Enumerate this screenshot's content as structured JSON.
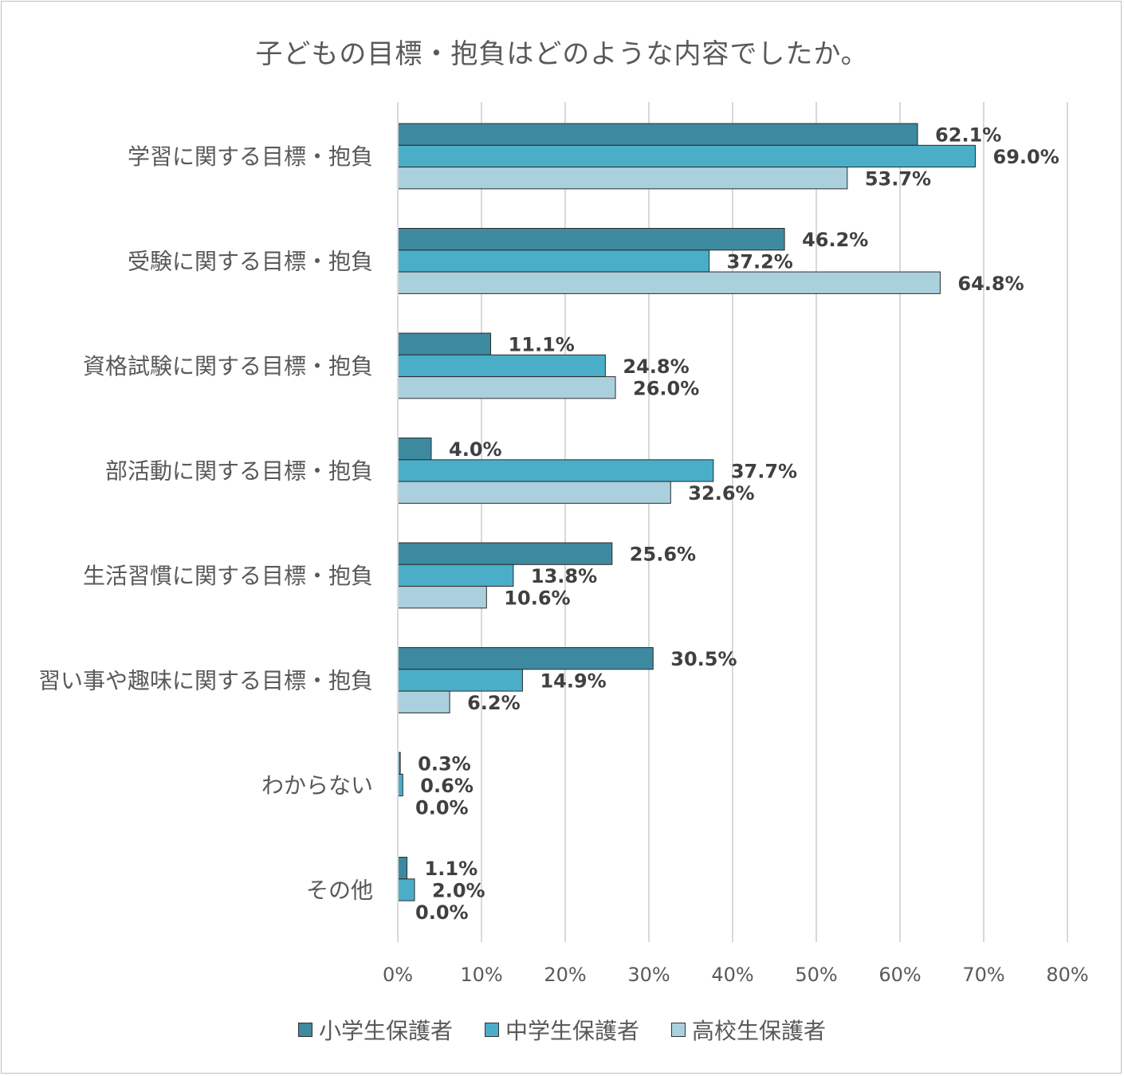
{
  "colors": {
    "series1": "#3d8aa0",
    "series2": "#4aaec9",
    "series3": "#abd0dd",
    "grid": "#d9d9d9",
    "text": "#595959"
  },
  "chart_data": {
    "type": "bar",
    "orientation": "horizontal",
    "title": "子どもの目標・抱負はどのような内容でしたか。",
    "categories": [
      "学習に関する目標・抱負",
      "受験に関する目標・抱負",
      "資格試験に関する目標・抱負",
      "部活動に関する目標・抱負",
      "生活習慣に関する目標・抱負",
      "習い事や趣味に関する目標・抱負",
      "わからない",
      "その他"
    ],
    "series": [
      {
        "name": "小学生保護者",
        "values": [
          62.1,
          46.2,
          11.1,
          4.0,
          25.6,
          30.5,
          0.3,
          1.1
        ]
      },
      {
        "name": "中学生保護者",
        "values": [
          69.0,
          37.2,
          24.8,
          37.7,
          13.8,
          14.9,
          0.6,
          2.0
        ]
      },
      {
        "name": "高校生保護者",
        "values": [
          53.7,
          64.8,
          26.0,
          32.6,
          10.6,
          6.2,
          0.0,
          0.0
        ]
      }
    ],
    "xlim": [
      0,
      80
    ],
    "xticks": [
      "0%",
      "10%",
      "20%",
      "30%",
      "40%",
      "50%",
      "60%",
      "70%",
      "80%"
    ],
    "grid": true,
    "legend_position": "bottom",
    "data_label_format": "percent_1dp"
  }
}
